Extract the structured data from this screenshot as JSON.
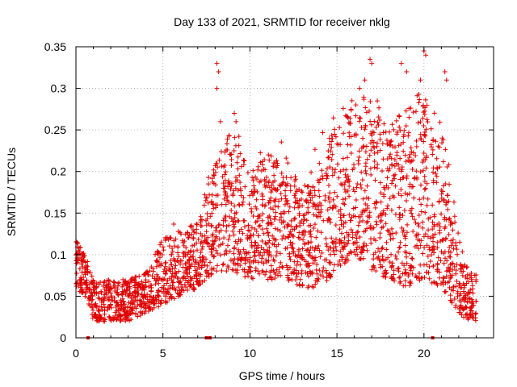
{
  "chart_data": {
    "type": "scatter",
    "title": "Day 133 of 2021, SRMTID for receiver nklg",
    "xlabel": "GPS time / hours",
    "ylabel": "SRMTID / TECUs",
    "xlim": [
      0,
      24
    ],
    "ylim": [
      0,
      0.35
    ],
    "xticks": [
      0,
      5,
      10,
      15,
      20
    ],
    "xtick_labels": [
      "0",
      "5",
      "10",
      "15",
      "20"
    ],
    "yticks": [
      0,
      0.05,
      0.1,
      0.15,
      0.2,
      0.25,
      0.3,
      0.35
    ],
    "ytick_labels": [
      "0",
      "0.05",
      "0.1",
      "0.15",
      "0.2",
      "0.25",
      "0.3",
      "0.35"
    ],
    "grid": true,
    "marker": "+",
    "color": "#e00000",
    "zero_markers_x": [
      0.7,
      7.5,
      7.7,
      20.5
    ],
    "trend": [
      {
        "x": 0.0,
        "lo": 0.06,
        "hi": 0.12
      },
      {
        "x": 0.5,
        "lo": 0.05,
        "hi": 0.1
      },
      {
        "x": 1.0,
        "lo": 0.02,
        "hi": 0.07
      },
      {
        "x": 2.0,
        "lo": 0.02,
        "hi": 0.07
      },
      {
        "x": 3.0,
        "lo": 0.02,
        "hi": 0.07
      },
      {
        "x": 4.0,
        "lo": 0.03,
        "hi": 0.08
      },
      {
        "x": 5.0,
        "lo": 0.04,
        "hi": 0.12
      },
      {
        "x": 6.0,
        "lo": 0.05,
        "hi": 0.13
      },
      {
        "x": 7.0,
        "lo": 0.06,
        "hi": 0.14
      },
      {
        "x": 8.0,
        "lo": 0.08,
        "hi": 0.22
      },
      {
        "x": 9.0,
        "lo": 0.08,
        "hi": 0.25
      },
      {
        "x": 10.0,
        "lo": 0.07,
        "hi": 0.2
      },
      {
        "x": 11.0,
        "lo": 0.07,
        "hi": 0.22
      },
      {
        "x": 12.0,
        "lo": 0.07,
        "hi": 0.22
      },
      {
        "x": 13.0,
        "lo": 0.06,
        "hi": 0.18
      },
      {
        "x": 14.0,
        "lo": 0.06,
        "hi": 0.22
      },
      {
        "x": 15.0,
        "lo": 0.08,
        "hi": 0.26
      },
      {
        "x": 16.0,
        "lo": 0.1,
        "hi": 0.28
      },
      {
        "x": 17.0,
        "lo": 0.08,
        "hi": 0.3
      },
      {
        "x": 18.0,
        "lo": 0.07,
        "hi": 0.26
      },
      {
        "x": 19.0,
        "lo": 0.06,
        "hi": 0.28
      },
      {
        "x": 20.0,
        "lo": 0.07,
        "hi": 0.3
      },
      {
        "x": 21.0,
        "lo": 0.06,
        "hi": 0.26
      },
      {
        "x": 22.0,
        "lo": 0.03,
        "hi": 0.12
      },
      {
        "x": 22.5,
        "lo": 0.02,
        "hi": 0.08
      },
      {
        "x": 23.0,
        "lo": 0.02,
        "hi": 0.08
      }
    ],
    "outliers": [
      {
        "x": 8.1,
        "y": 0.33
      },
      {
        "x": 8.2,
        "y": 0.32
      },
      {
        "x": 8.1,
        "y": 0.3
      },
      {
        "x": 8.3,
        "y": 0.26
      },
      {
        "x": 16.9,
        "y": 0.335
      },
      {
        "x": 17.0,
        "y": 0.33
      },
      {
        "x": 18.7,
        "y": 0.33
      },
      {
        "x": 19.0,
        "y": 0.32
      },
      {
        "x": 20.0,
        "y": 0.345
      },
      {
        "x": 20.1,
        "y": 0.34
      },
      {
        "x": 21.2,
        "y": 0.32
      },
      {
        "x": 21.3,
        "y": 0.31
      },
      {
        "x": 16.3,
        "y": 0.3
      },
      {
        "x": 16.6,
        "y": 0.31
      },
      {
        "x": 19.8,
        "y": 0.31
      },
      {
        "x": 9.1,
        "y": 0.27
      },
      {
        "x": 9.2,
        "y": 0.26
      }
    ]
  }
}
